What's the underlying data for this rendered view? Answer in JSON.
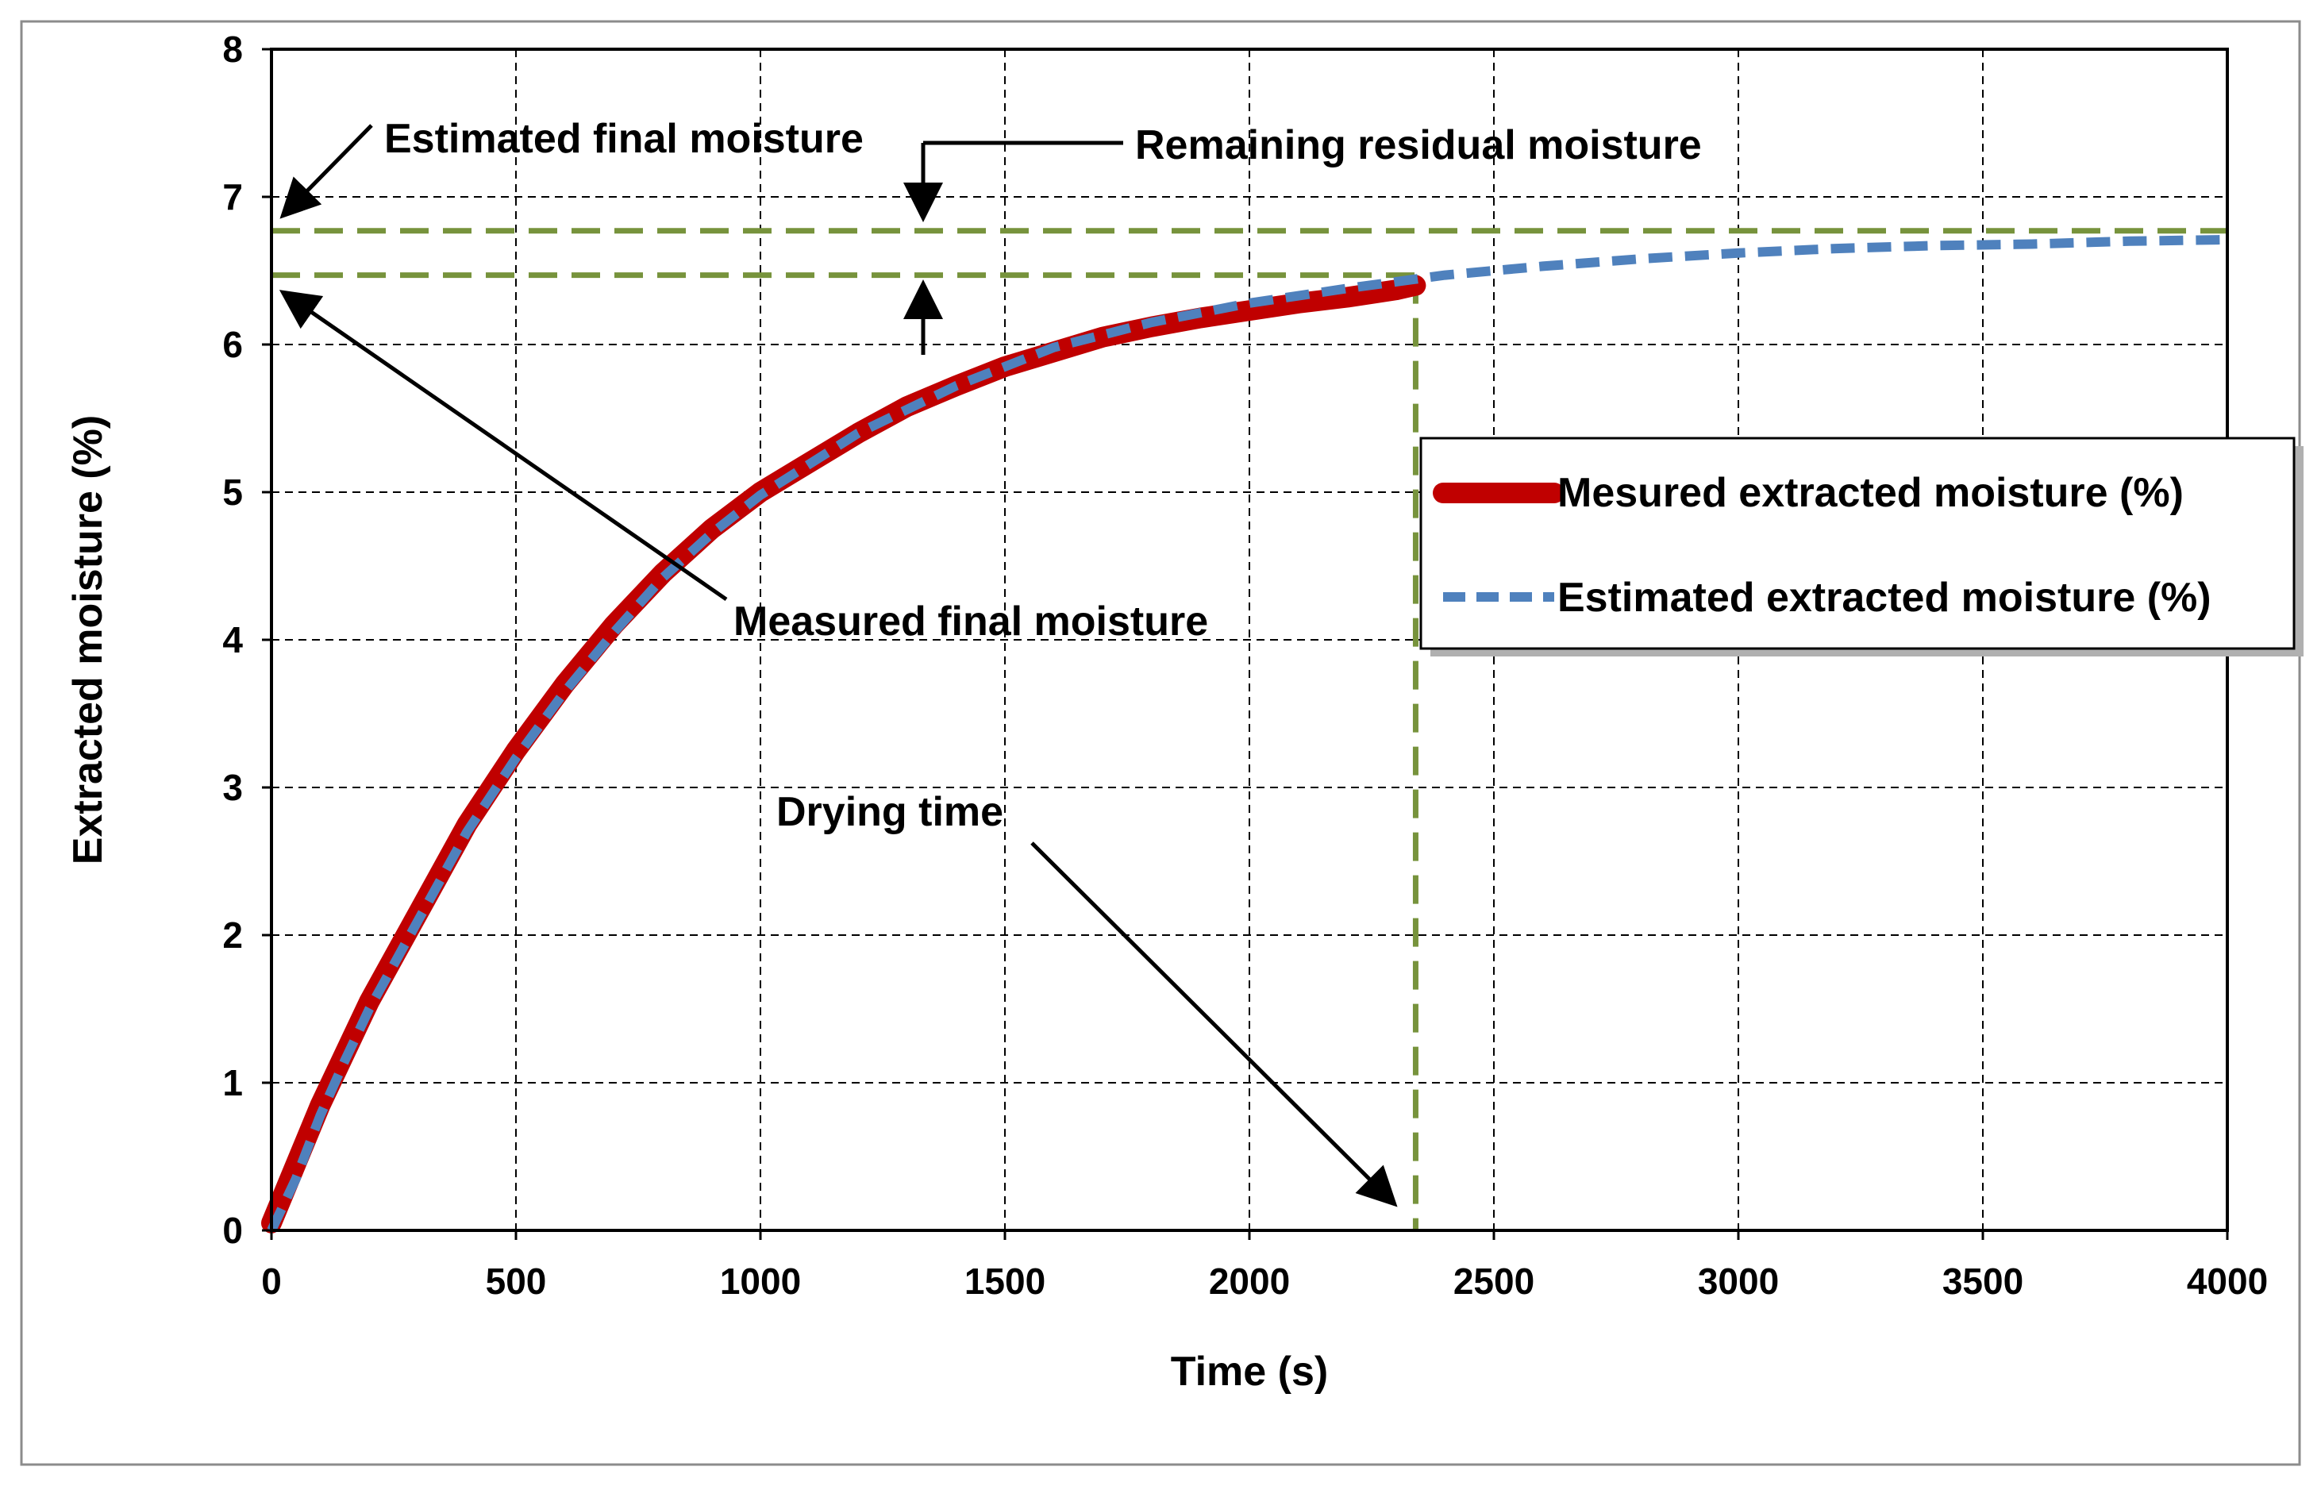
{
  "chart_data": {
    "type": "line",
    "title": "",
    "xlabel": "Time (s)",
    "ylabel": "Extracted moisture (%)",
    "xlim": [
      0,
      4000
    ],
    "ylim": [
      0,
      8
    ],
    "xticks": [
      0,
      500,
      1000,
      1500,
      2000,
      2500,
      3000,
      3500,
      4000
    ],
    "yticks": [
      0,
      1,
      2,
      3,
      4,
      5,
      6,
      7,
      8
    ],
    "grid": true,
    "legend_position": "right",
    "series": [
      {
        "name": "Mesured extracted moisture (%)",
        "style": "solid",
        "color": "#c00000",
        "x": [
          0,
          50,
          100,
          150,
          200,
          300,
          400,
          500,
          600,
          700,
          800,
          900,
          1000,
          1100,
          1200,
          1300,
          1400,
          1500,
          1600,
          1700,
          1800,
          1900,
          2000,
          2100,
          2200,
          2300,
          2340
        ],
        "y": [
          0.05,
          0.45,
          0.85,
          1.2,
          1.55,
          2.15,
          2.75,
          3.25,
          3.7,
          4.1,
          4.45,
          4.75,
          5.0,
          5.2,
          5.4,
          5.58,
          5.72,
          5.85,
          5.95,
          6.05,
          6.12,
          6.18,
          6.23,
          6.28,
          6.32,
          6.37,
          6.4
        ]
      },
      {
        "name": "Estimated extracted moisture (%)",
        "style": "dashed",
        "color": "#4f81bd",
        "x": [
          0,
          50,
          100,
          150,
          200,
          300,
          400,
          500,
          600,
          700,
          800,
          900,
          1000,
          1200,
          1400,
          1600,
          1800,
          2000,
          2200,
          2400,
          2600,
          2800,
          3000,
          3200,
          3400,
          3600,
          3800,
          4000
        ],
        "y": [
          0.0,
          0.35,
          0.78,
          1.15,
          1.5,
          2.1,
          2.7,
          3.2,
          3.65,
          4.05,
          4.42,
          4.72,
          4.98,
          5.4,
          5.72,
          5.98,
          6.15,
          6.28,
          6.38,
          6.47,
          6.53,
          6.58,
          6.62,
          6.65,
          6.67,
          6.68,
          6.7,
          6.71
        ]
      }
    ],
    "reference_lines": {
      "estimated_final_moisture": 6.77,
      "measured_final_moisture": 6.47,
      "drying_time": 2340
    },
    "annotations": {
      "estimated_final_moisture": "Estimated final moisture",
      "remaining_residual_moisture": "Remaining residual moisture",
      "measured_final_moisture": "Measured final moisture",
      "drying_time": "Drying time"
    },
    "colors": {
      "reference": "#77933c",
      "grid": "#000000",
      "measured": "#c00000",
      "estimated": "#4f81bd"
    }
  }
}
